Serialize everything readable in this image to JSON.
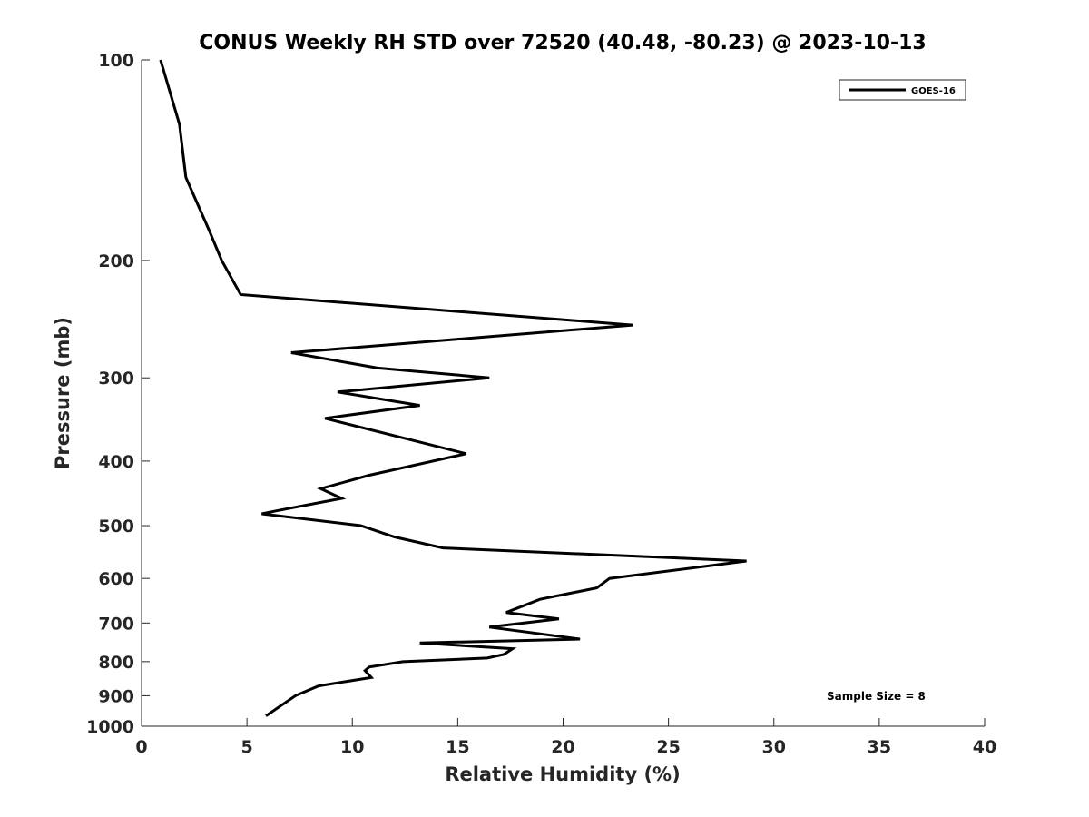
{
  "chart_data": {
    "type": "line",
    "title": "CONUS Weekly RH STD over 72520 (40.48, -80.23) @ 2023-10-13",
    "xlabel": "Relative Humidity (%)",
    "ylabel": "Pressure (mb)",
    "xlim": [
      0,
      40
    ],
    "ylim": [
      100,
      1000
    ],
    "yscale": "log",
    "reverse_y": true,
    "x_ticks": [
      0,
      5,
      10,
      15,
      20,
      25,
      30,
      35,
      40
    ],
    "y_ticks": [
      100,
      200,
      300,
      400,
      500,
      600,
      700,
      800,
      900,
      1000
    ],
    "grid": false,
    "legend_position": "top-right",
    "series": [
      {
        "name": "GOES-16",
        "color": "#000000",
        "x": [
          0.9,
          1.8,
          2.1,
          3.2,
          3.8,
          4.7,
          23.3,
          7.1,
          11.2,
          16.5,
          9.3,
          13.2,
          8.7,
          15.4,
          10.8,
          8.5,
          9.5,
          6.4,
          5.7,
          10.4,
          12.0,
          14.3,
          28.7,
          22.2,
          21.6,
          18.9,
          17.3,
          19.8,
          16.5,
          20.8,
          13.2,
          17.6,
          17.2,
          16.4,
          12.4,
          10.8,
          10.6,
          10.9,
          8.4,
          7.3,
          5.9
        ],
        "y": [
          100,
          125,
          150,
          180,
          200,
          225,
          250,
          275,
          290,
          300,
          315,
          330,
          345,
          390,
          420,
          440,
          455,
          475,
          480,
          500,
          520,
          540,
          565,
          600,
          620,
          645,
          675,
          690,
          710,
          740,
          750,
          765,
          780,
          790,
          800,
          815,
          825,
          845,
          870,
          900,
          965
        ]
      }
    ],
    "annotations": [
      {
        "text": "Sample Size = 8",
        "position": "bottom-right"
      }
    ]
  }
}
